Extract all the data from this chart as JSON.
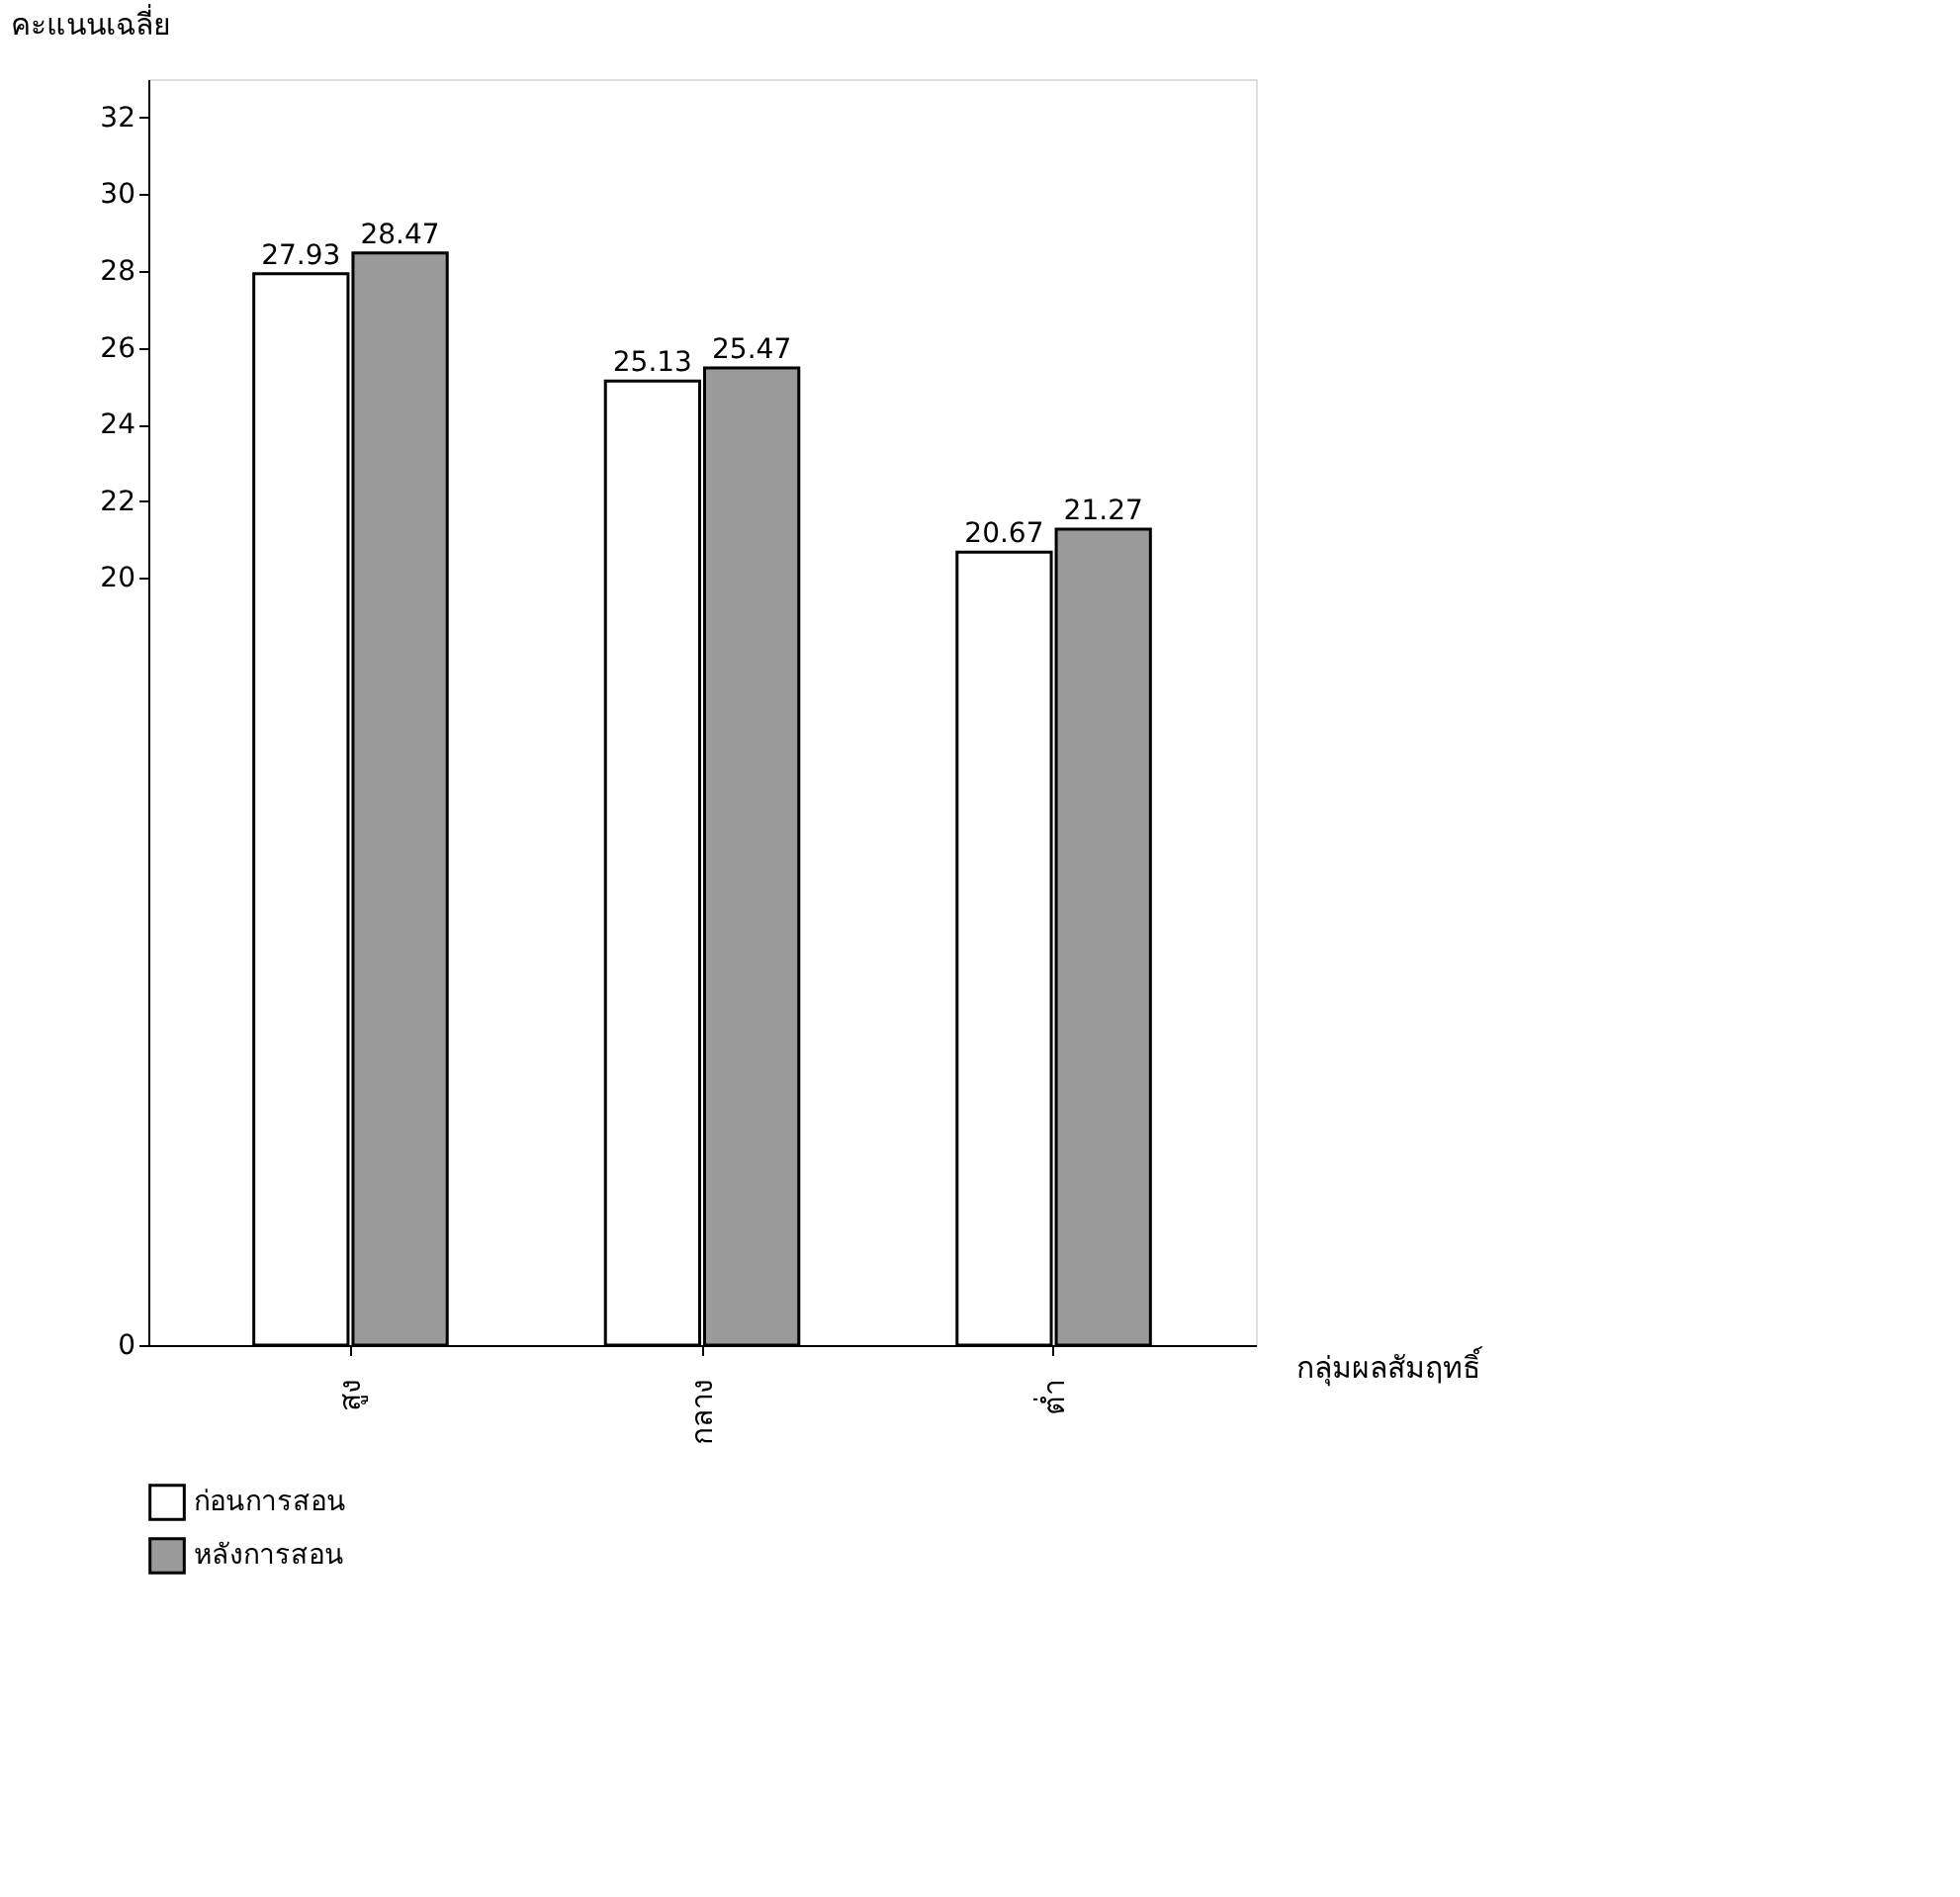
{
  "chart_data": {
    "type": "bar",
    "xlabel": "กลุ่มผลสัมฤทธิ์",
    "ylabel": "คะแนนเฉลี่ย",
    "categories": [
      "สูง",
      "กลาง",
      "ต่ำ"
    ],
    "series": [
      {
        "name": "ก่อนการสอน",
        "color": "#ffffff",
        "values": [
          27.93,
          25.13,
          20.67
        ]
      },
      {
        "name": "หลังการสอน",
        "color": "#9a9a9a",
        "values": [
          28.47,
          25.47,
          21.27
        ]
      }
    ],
    "ylim": [
      0,
      33
    ],
    "yticks": [
      0,
      20,
      22,
      24,
      26,
      28,
      30,
      32
    ],
    "data_labels": true,
    "grid": false,
    "legend": "bottom"
  }
}
